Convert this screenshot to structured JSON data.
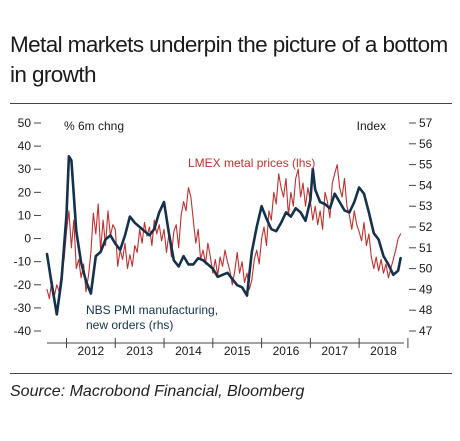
{
  "title": "Metal markets underpin the picture of a bottom in growth",
  "source": "Source: Macrobond Financial, Bloomberg",
  "chart_data": {
    "type": "line",
    "left_axis_label": "% 6m chng",
    "right_axis_label": "Index",
    "left_ylim": [
      -40,
      50
    ],
    "right_ylim": [
      47,
      57
    ],
    "left_ticks": [
      50,
      40,
      30,
      20,
      10,
      0,
      -10,
      -20,
      -30,
      -40
    ],
    "right_ticks": [
      57,
      56,
      55,
      54,
      53,
      52,
      51,
      50,
      49,
      48,
      47
    ],
    "x_tick_labels": [
      "2012",
      "2013",
      "2014",
      "2015",
      "2016",
      "2017",
      "2018"
    ],
    "xlim": [
      2011.6,
      2018.92
    ],
    "grid": false,
    "series": [
      {
        "name": "LMEX metal prices (lhs)",
        "axis": "left",
        "color": "#c0302b",
        "x": [
          2011.6,
          2011.65,
          2011.7,
          2011.75,
          2011.8,
          2011.85,
          2011.9,
          2011.95,
          2012.0,
          2012.05,
          2012.1,
          2012.15,
          2012.2,
          2012.25,
          2012.3,
          2012.35,
          2012.4,
          2012.45,
          2012.5,
          2012.55,
          2012.6,
          2012.65,
          2012.7,
          2012.75,
          2012.8,
          2012.85,
          2012.9,
          2012.95,
          2013.0,
          2013.05,
          2013.1,
          2013.15,
          2013.2,
          2013.25,
          2013.3,
          2013.35,
          2013.4,
          2013.45,
          2013.5,
          2013.55,
          2013.6,
          2013.65,
          2013.7,
          2013.75,
          2013.8,
          2013.85,
          2013.9,
          2013.95,
          2014.0,
          2014.05,
          2014.1,
          2014.15,
          2014.2,
          2014.25,
          2014.3,
          2014.35,
          2014.4,
          2014.45,
          2014.5,
          2014.55,
          2014.6,
          2014.65,
          2014.7,
          2014.75,
          2014.8,
          2014.85,
          2014.9,
          2014.95,
          2015.0,
          2015.05,
          2015.1,
          2015.15,
          2015.2,
          2015.25,
          2015.3,
          2015.35,
          2015.4,
          2015.45,
          2015.5,
          2015.55,
          2015.6,
          2015.65,
          2015.7,
          2015.75,
          2015.8,
          2015.85,
          2015.9,
          2015.95,
          2016.0,
          2016.05,
          2016.1,
          2016.15,
          2016.2,
          2016.25,
          2016.3,
          2016.35,
          2016.4,
          2016.45,
          2016.5,
          2016.55,
          2016.6,
          2016.65,
          2016.7,
          2016.75,
          2016.8,
          2016.85,
          2016.9,
          2016.95,
          2017.0,
          2017.05,
          2017.1,
          2017.15,
          2017.2,
          2017.25,
          2017.3,
          2017.35,
          2017.4,
          2017.45,
          2017.5,
          2017.55,
          2017.6,
          2017.65,
          2017.7,
          2017.75,
          2017.8,
          2017.85,
          2017.9,
          2017.95,
          2018.0,
          2018.05,
          2018.1,
          2018.15,
          2018.2,
          2018.25,
          2018.3,
          2018.35,
          2018.4,
          2018.45,
          2018.5,
          2018.55,
          2018.6,
          2018.65,
          2018.7,
          2018.75,
          2018.8,
          2018.85
        ],
        "values": [
          -22,
          -26,
          -18,
          -25,
          -20,
          -23,
          -14,
          -9,
          3,
          12,
          -4,
          8,
          -13,
          -9,
          -17,
          -11,
          -23,
          -16,
          -6,
          11,
          2,
          15,
          -5,
          8,
          -3,
          12,
          1,
          6,
          4,
          -12,
          -5,
          -9,
          -2,
          -13,
          -7,
          -12,
          -3,
          -6,
          4,
          -2,
          7,
          1,
          5,
          -3,
          8,
          2,
          6,
          -1,
          4,
          -6,
          2,
          -8,
          3,
          6,
          -4,
          10,
          16,
          12,
          22,
          18,
          8,
          -2,
          4,
          -9,
          -5,
          -11,
          -2,
          -8,
          -15,
          -9,
          -16,
          -8,
          -12,
          -5,
          -10,
          -14,
          -20,
          -14,
          -6,
          -15,
          -10,
          -19,
          -15,
          -22,
          -18,
          -9,
          -5,
          -11,
          0,
          5,
          -3,
          12,
          8,
          20,
          15,
          28,
          22,
          18,
          26,
          10,
          20,
          14,
          26,
          30,
          18,
          24,
          14,
          22,
          16,
          8,
          14,
          6,
          12,
          4,
          20,
          16,
          9,
          24,
          28,
          32,
          22,
          18,
          26,
          14,
          10,
          4,
          12,
          6,
          3,
          -1,
          7,
          -3,
          2,
          -8,
          -13,
          -8,
          -14,
          -9,
          -15,
          -11,
          -17,
          -13,
          -9,
          -5,
          0,
          2
        ]
      },
      {
        "name": "NBS PMI manufacturing, new orders (rhs)",
        "axis": "right",
        "color": "#14324d",
        "x": [
          2011.6,
          2011.7,
          2011.8,
          2011.9,
          2012.0,
          2012.05,
          2012.1,
          2012.2,
          2012.3,
          2012.4,
          2012.5,
          2012.6,
          2012.7,
          2012.8,
          2012.9,
          2013.0,
          2013.1,
          2013.2,
          2013.3,
          2013.4,
          2013.5,
          2013.6,
          2013.7,
          2013.8,
          2013.9,
          2014.0,
          2014.1,
          2014.2,
          2014.3,
          2014.4,
          2014.5,
          2014.6,
          2014.7,
          2014.8,
          2014.9,
          2015.0,
          2015.1,
          2015.2,
          2015.3,
          2015.4,
          2015.5,
          2015.6,
          2015.7,
          2015.8,
          2015.9,
          2016.0,
          2016.1,
          2016.2,
          2016.3,
          2016.4,
          2016.5,
          2016.6,
          2016.7,
          2016.8,
          2016.9,
          2017.0,
          2017.05,
          2017.1,
          2017.2,
          2017.3,
          2017.4,
          2017.5,
          2017.6,
          2017.7,
          2017.8,
          2017.9,
          2018.0,
          2018.1,
          2018.2,
          2018.3,
          2018.4,
          2018.5,
          2018.6,
          2018.7,
          2018.8,
          2018.85
        ],
        "values": [
          50.7,
          49.2,
          47.8,
          49.5,
          52.6,
          55.4,
          55.2,
          51.8,
          50.3,
          49.4,
          48.8,
          50.6,
          50.8,
          51.4,
          51.6,
          51.2,
          50.9,
          51.6,
          52.5,
          52.2,
          52.0,
          51.8,
          51.6,
          51.9,
          52.7,
          53.2,
          51.7,
          50.4,
          50.1,
          50.6,
          50.2,
          50.2,
          50.5,
          50.4,
          50.2,
          50.0,
          49.6,
          49.7,
          49.8,
          49.5,
          49.2,
          49.1,
          48.7,
          50.8,
          52.0,
          53.0,
          52.4,
          51.9,
          51.8,
          52.2,
          52.7,
          52.5,
          52.9,
          52.7,
          52.3,
          53.3,
          54.8,
          53.8,
          53.2,
          53.1,
          52.9,
          53.6,
          53.2,
          52.8,
          52.7,
          53.2,
          53.9,
          53.6,
          52.7,
          51.7,
          51.4,
          50.6,
          50.2,
          49.7,
          49.9,
          50.5
        ]
      }
    ],
    "annotations": [
      "LMEX metal prices (lhs)",
      "NBS PMI manufacturing, new orders (rhs)"
    ]
  }
}
